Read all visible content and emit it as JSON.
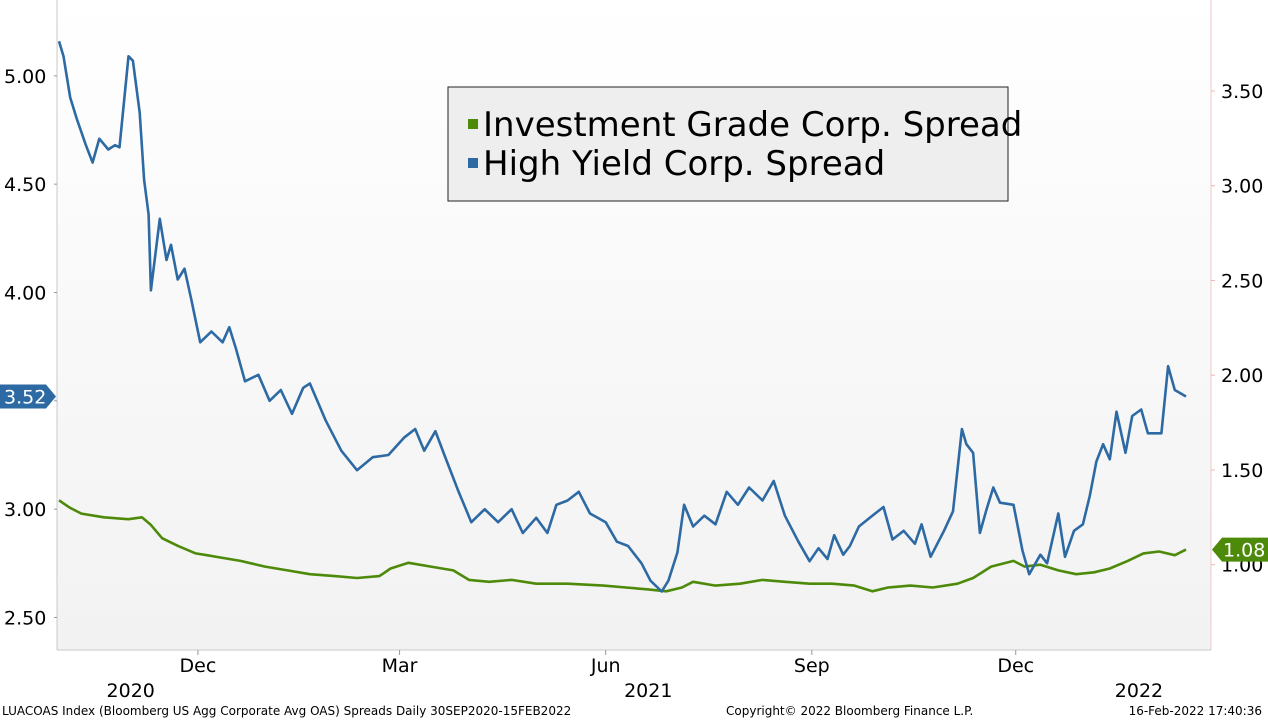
{
  "chart_data": {
    "type": "line",
    "title": "",
    "xlabel": "",
    "ylabel": "",
    "x_tick_labels": [
      {
        "date": "2020-12-01",
        "label": "Dec"
      },
      {
        "date": "2021-03-01",
        "label": "Mar"
      },
      {
        "date": "2021-06-01",
        "label": "Jun"
      },
      {
        "date": "2021-09-01",
        "label": "Sep"
      },
      {
        "date": "2021-12-01",
        "label": "Dec"
      }
    ],
    "x_year_labels": [
      {
        "date": "2020-11-01",
        "label": "2020"
      },
      {
        "date": "2021-06-20",
        "label": "2021"
      },
      {
        "date": "2022-01-25",
        "label": "2022"
      }
    ],
    "x_range": [
      "2020-09-30",
      "2022-02-15"
    ],
    "y_left": {
      "range": [
        2.35,
        5.35
      ],
      "ticks": [
        "2.50",
        "3.00",
        "3.50",
        "4.00",
        "4.50",
        "5.00"
      ]
    },
    "y_right": {
      "range": [
        0.55,
        3.98
      ],
      "ticks": [
        "1.00",
        "1.50",
        "2.00",
        "2.50",
        "3.00",
        "3.50"
      ]
    },
    "legend_position": "top-center",
    "series": [
      {
        "name": "Investment Grade Corp. Spread",
        "axis": "right",
        "color": "#4e8a0a",
        "last_value_label": "1.08",
        "points": [
          [
            "2020-09-30",
            1.34
          ],
          [
            "2020-10-05",
            1.3
          ],
          [
            "2020-10-10",
            1.27
          ],
          [
            "2020-10-20",
            1.25
          ],
          [
            "2020-10-31",
            1.24
          ],
          [
            "2020-11-06",
            1.25
          ],
          [
            "2020-11-10",
            1.21
          ],
          [
            "2020-11-15",
            1.14
          ],
          [
            "2020-11-22",
            1.1
          ],
          [
            "2020-11-30",
            1.06
          ],
          [
            "2020-12-05",
            1.05
          ],
          [
            "2020-12-10",
            1.04
          ],
          [
            "2020-12-20",
            1.02
          ],
          [
            "2020-12-31",
            0.99
          ],
          [
            "2021-01-10",
            0.97
          ],
          [
            "2021-01-20",
            0.95
          ],
          [
            "2021-01-31",
            0.94
          ],
          [
            "2021-02-10",
            0.93
          ],
          [
            "2021-02-20",
            0.94
          ],
          [
            "2021-02-25",
            0.98
          ],
          [
            "2021-03-05",
            1.01
          ],
          [
            "2021-03-15",
            0.99
          ],
          [
            "2021-03-25",
            0.97
          ],
          [
            "2021-04-01",
            0.92
          ],
          [
            "2021-04-10",
            0.91
          ],
          [
            "2021-04-20",
            0.92
          ],
          [
            "2021-05-01",
            0.9
          ],
          [
            "2021-05-15",
            0.9
          ],
          [
            "2021-05-31",
            0.89
          ],
          [
            "2021-06-10",
            0.88
          ],
          [
            "2021-06-20",
            0.87
          ],
          [
            "2021-06-28",
            0.86
          ],
          [
            "2021-07-05",
            0.88
          ],
          [
            "2021-07-10",
            0.91
          ],
          [
            "2021-07-20",
            0.89
          ],
          [
            "2021-07-31",
            0.9
          ],
          [
            "2021-08-10",
            0.92
          ],
          [
            "2021-08-20",
            0.91
          ],
          [
            "2021-08-31",
            0.9
          ],
          [
            "2021-09-10",
            0.9
          ],
          [
            "2021-09-20",
            0.89
          ],
          [
            "2021-09-28",
            0.86
          ],
          [
            "2021-10-05",
            0.88
          ],
          [
            "2021-10-15",
            0.89
          ],
          [
            "2021-10-25",
            0.88
          ],
          [
            "2021-11-05",
            0.9
          ],
          [
            "2021-11-12",
            0.93
          ],
          [
            "2021-11-20",
            0.99
          ],
          [
            "2021-11-30",
            1.02
          ],
          [
            "2021-12-05",
            0.99
          ],
          [
            "2021-12-12",
            1.0
          ],
          [
            "2021-12-20",
            0.97
          ],
          [
            "2021-12-28",
            0.95
          ],
          [
            "2022-01-05",
            0.96
          ],
          [
            "2022-01-12",
            0.98
          ],
          [
            "2022-01-20",
            1.02
          ],
          [
            "2022-01-27",
            1.06
          ],
          [
            "2022-02-03",
            1.07
          ],
          [
            "2022-02-10",
            1.05
          ],
          [
            "2022-02-15",
            1.08
          ]
        ]
      },
      {
        "name": "High Yield Corp. Spread",
        "axis": "left",
        "color": "#2d6aa4",
        "last_value_label": "3.52",
        "points": [
          [
            "2020-09-30",
            5.16
          ],
          [
            "2020-10-02",
            5.09
          ],
          [
            "2020-10-05",
            4.9
          ],
          [
            "2020-10-08",
            4.8
          ],
          [
            "2020-10-12",
            4.68
          ],
          [
            "2020-10-15",
            4.6
          ],
          [
            "2020-10-18",
            4.71
          ],
          [
            "2020-10-22",
            4.66
          ],
          [
            "2020-10-25",
            4.68
          ],
          [
            "2020-10-27",
            4.67
          ],
          [
            "2020-10-29",
            4.88
          ],
          [
            "2020-10-31",
            5.09
          ],
          [
            "2020-11-02",
            5.07
          ],
          [
            "2020-11-05",
            4.83
          ],
          [
            "2020-11-07",
            4.52
          ],
          [
            "2020-11-09",
            4.36
          ],
          [
            "2020-11-10",
            4.01
          ],
          [
            "2020-11-14",
            4.34
          ],
          [
            "2020-11-17",
            4.15
          ],
          [
            "2020-11-19",
            4.22
          ],
          [
            "2020-11-22",
            4.06
          ],
          [
            "2020-11-25",
            4.11
          ],
          [
            "2020-11-28",
            3.97
          ],
          [
            "2020-12-02",
            3.77
          ],
          [
            "2020-12-07",
            3.82
          ],
          [
            "2020-12-12",
            3.77
          ],
          [
            "2020-12-15",
            3.84
          ],
          [
            "2020-12-18",
            3.74
          ],
          [
            "2020-12-22",
            3.59
          ],
          [
            "2020-12-28",
            3.62
          ],
          [
            "2021-01-02",
            3.5
          ],
          [
            "2021-01-07",
            3.55
          ],
          [
            "2021-01-12",
            3.44
          ],
          [
            "2021-01-17",
            3.56
          ],
          [
            "2021-01-20",
            3.58
          ],
          [
            "2021-01-27",
            3.41
          ],
          [
            "2021-02-03",
            3.27
          ],
          [
            "2021-02-10",
            3.18
          ],
          [
            "2021-02-17",
            3.24
          ],
          [
            "2021-02-24",
            3.25
          ],
          [
            "2021-03-03",
            3.33
          ],
          [
            "2021-03-08",
            3.37
          ],
          [
            "2021-03-12",
            3.27
          ],
          [
            "2021-03-17",
            3.36
          ],
          [
            "2021-03-21",
            3.25
          ],
          [
            "2021-03-27",
            3.09
          ],
          [
            "2021-04-02",
            2.94
          ],
          [
            "2021-04-08",
            3.0
          ],
          [
            "2021-04-14",
            2.94
          ],
          [
            "2021-04-20",
            3.0
          ],
          [
            "2021-04-25",
            2.89
          ],
          [
            "2021-05-01",
            2.96
          ],
          [
            "2021-05-06",
            2.89
          ],
          [
            "2021-05-10",
            3.02
          ],
          [
            "2021-05-15",
            3.04
          ],
          [
            "2021-05-20",
            3.08
          ],
          [
            "2021-05-25",
            2.98
          ],
          [
            "2021-06-01",
            2.94
          ],
          [
            "2021-06-06",
            2.85
          ],
          [
            "2021-06-11",
            2.83
          ],
          [
            "2021-06-17",
            2.75
          ],
          [
            "2021-06-21",
            2.67
          ],
          [
            "2021-06-26",
            2.62
          ],
          [
            "2021-06-29",
            2.67
          ],
          [
            "2021-07-03",
            2.8
          ],
          [
            "2021-07-06",
            3.02
          ],
          [
            "2021-07-10",
            2.92
          ],
          [
            "2021-07-15",
            2.97
          ],
          [
            "2021-07-20",
            2.93
          ],
          [
            "2021-07-25",
            3.08
          ],
          [
            "2021-07-30",
            3.02
          ],
          [
            "2021-08-04",
            3.1
          ],
          [
            "2021-08-10",
            3.04
          ],
          [
            "2021-08-15",
            3.13
          ],
          [
            "2021-08-20",
            2.97
          ],
          [
            "2021-08-26",
            2.85
          ],
          [
            "2021-08-31",
            2.76
          ],
          [
            "2021-09-04",
            2.82
          ],
          [
            "2021-09-08",
            2.77
          ],
          [
            "2021-09-11",
            2.88
          ],
          [
            "2021-09-15",
            2.79
          ],
          [
            "2021-09-18",
            2.83
          ],
          [
            "2021-09-22",
            2.92
          ],
          [
            "2021-09-28",
            2.97
          ],
          [
            "2021-10-03",
            3.01
          ],
          [
            "2021-10-07",
            2.86
          ],
          [
            "2021-10-12",
            2.9
          ],
          [
            "2021-10-17",
            2.84
          ],
          [
            "2021-10-20",
            2.93
          ],
          [
            "2021-10-24",
            2.78
          ],
          [
            "2021-10-30",
            2.9
          ],
          [
            "2021-11-03",
            2.99
          ],
          [
            "2021-11-07",
            3.37
          ],
          [
            "2021-11-09",
            3.3
          ],
          [
            "2021-11-12",
            3.26
          ],
          [
            "2021-11-15",
            2.89
          ],
          [
            "2021-11-18",
            3.0
          ],
          [
            "2021-11-21",
            3.1
          ],
          [
            "2021-11-24",
            3.03
          ],
          [
            "2021-11-30",
            3.02
          ],
          [
            "2021-12-04",
            2.81
          ],
          [
            "2021-12-07",
            2.7
          ],
          [
            "2021-12-12",
            2.79
          ],
          [
            "2021-12-15",
            2.75
          ],
          [
            "2021-12-20",
            2.98
          ],
          [
            "2021-12-23",
            2.78
          ],
          [
            "2021-12-27",
            2.9
          ],
          [
            "2021-12-31",
            2.93
          ],
          [
            "2022-01-03",
            3.06
          ],
          [
            "2022-01-06",
            3.22
          ],
          [
            "2022-01-09",
            3.3
          ],
          [
            "2022-01-12",
            3.23
          ],
          [
            "2022-01-15",
            3.45
          ],
          [
            "2022-01-19",
            3.26
          ],
          [
            "2022-01-22",
            3.43
          ],
          [
            "2022-01-26",
            3.46
          ],
          [
            "2022-01-29",
            3.35
          ],
          [
            "2022-02-04",
            3.35
          ],
          [
            "2022-02-07",
            3.66
          ],
          [
            "2022-02-10",
            3.55
          ],
          [
            "2022-02-15",
            3.52
          ]
        ]
      }
    ],
    "grid": false
  },
  "footer": {
    "left": "LUACOAS Index (Bloomberg US Agg Corporate Avg OAS) Spreads  Daily 30SEP2020-15FEB2022",
    "center": "Copyright© 2022 Bloomberg Finance L.P.",
    "right": "16-Feb-2022 17:40:36"
  }
}
